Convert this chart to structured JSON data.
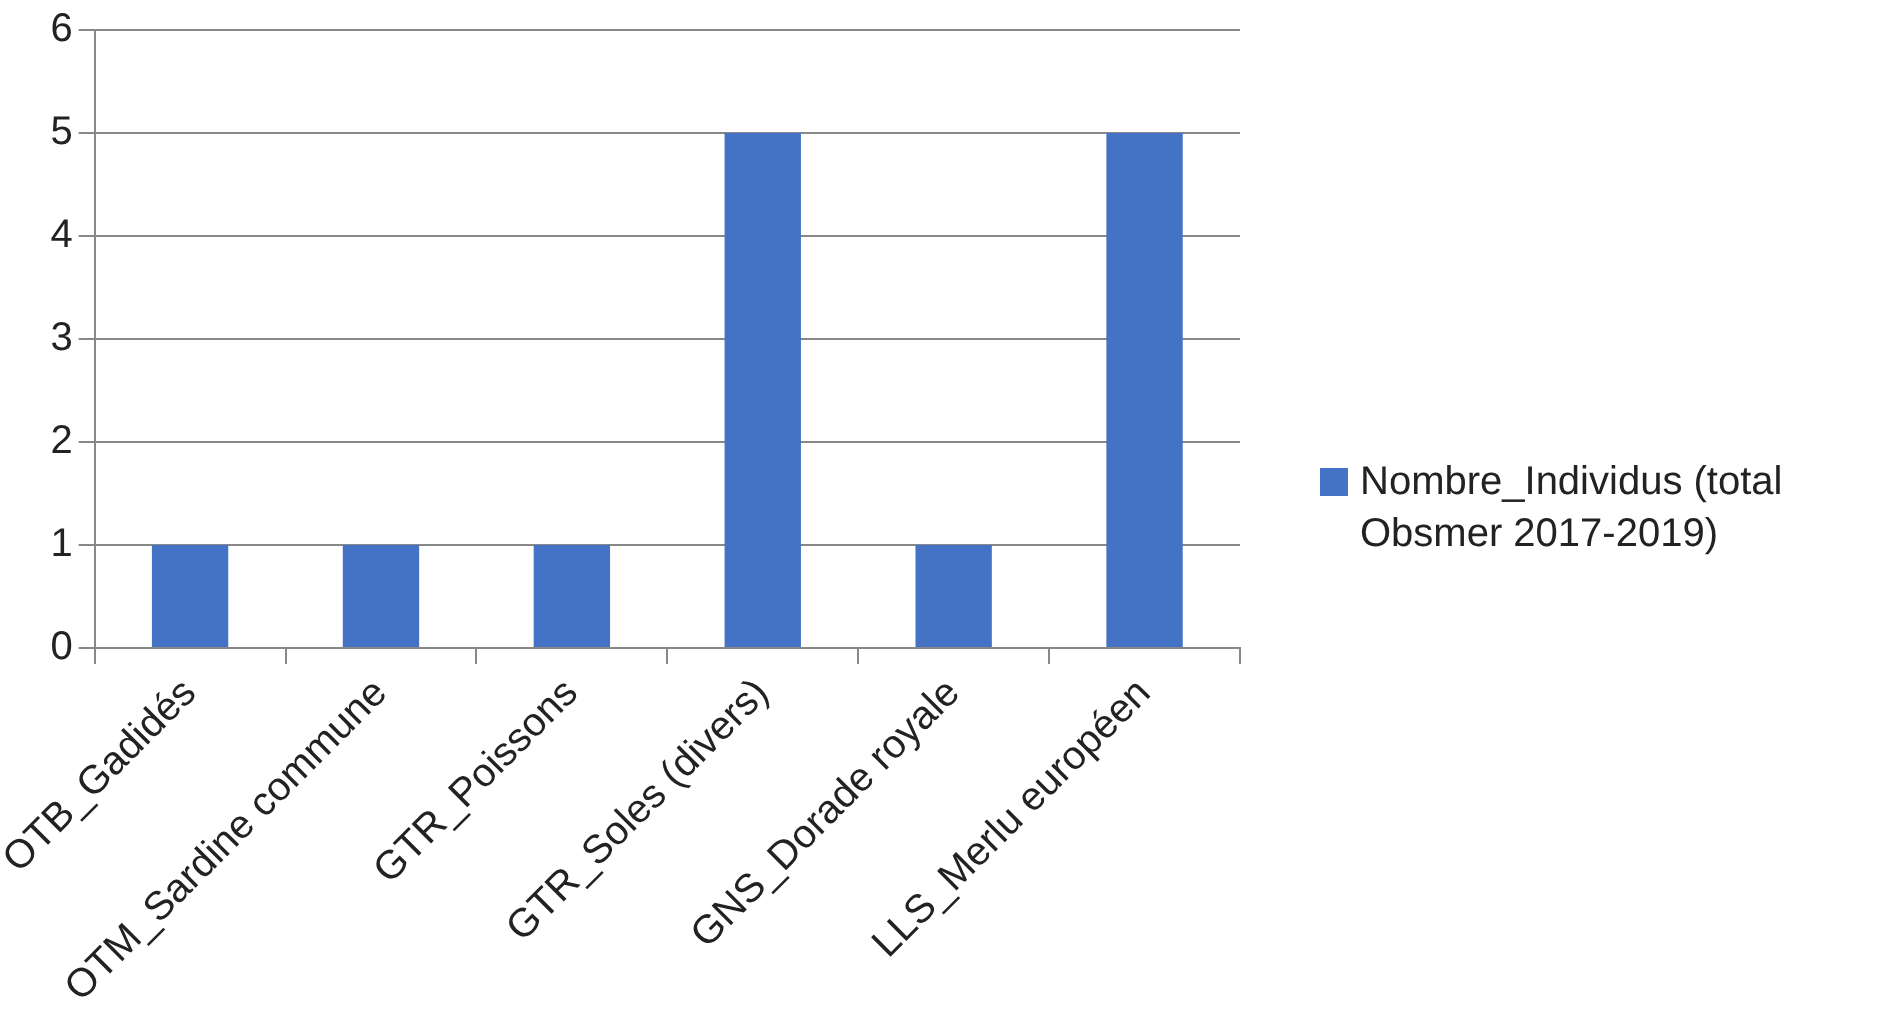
{
  "chart_data": {
    "type": "bar",
    "categories": [
      "OTB_Gadidés",
      "OTM_Sardine commune",
      "GTR_Poissons",
      "GTR_Soles (divers)",
      "GNS_Dorade royale",
      "LLS_Merlu européen"
    ],
    "series": [
      {
        "name": "Nombre_Individus (total Obsmer 2017-2019)",
        "color": "#4472c4",
        "values": [
          1,
          1,
          1,
          5,
          1,
          5
        ]
      }
    ],
    "ylim": [
      0,
      6
    ],
    "yticks": [
      0,
      1,
      2,
      3,
      4,
      5,
      6
    ],
    "grid": "y",
    "legend": "right"
  }
}
